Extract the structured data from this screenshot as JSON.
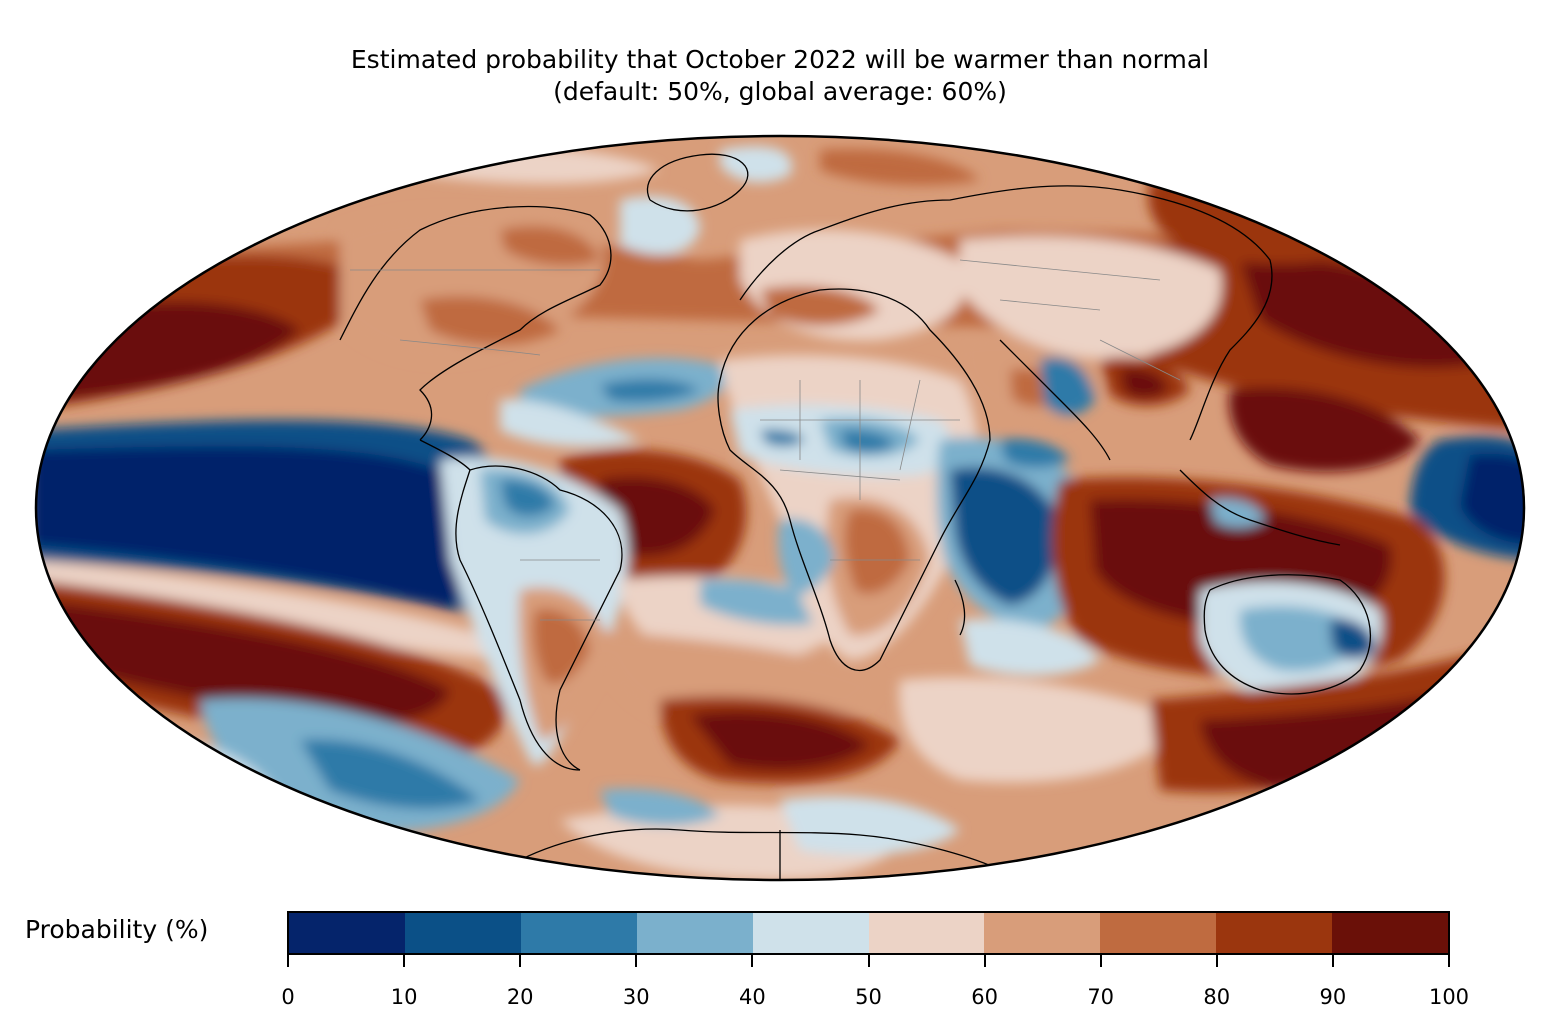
{
  "title": {
    "line1": "Estimated probability that October 2022 will be warmer than normal",
    "line2": "(default: 50%, global average: 60%)"
  },
  "colorbar": {
    "label": "Probability (%)",
    "ticks": [
      "0",
      "10",
      "20",
      "30",
      "40",
      "50",
      "60",
      "70",
      "80",
      "90",
      "100"
    ],
    "colors": [
      "#05246b",
      "#0b5087",
      "#2e7aa8",
      "#7bb0cc",
      "#cfe1ea",
      "#ecd3c6",
      "#d89d7a",
      "#bf6b40",
      "#9b360e",
      "#6a1008"
    ]
  },
  "map": {
    "projection": "Mollweide",
    "ocean_background_color": "#d89d7a",
    "coastline_color": "#000000",
    "border_color": "#888888"
  }
}
